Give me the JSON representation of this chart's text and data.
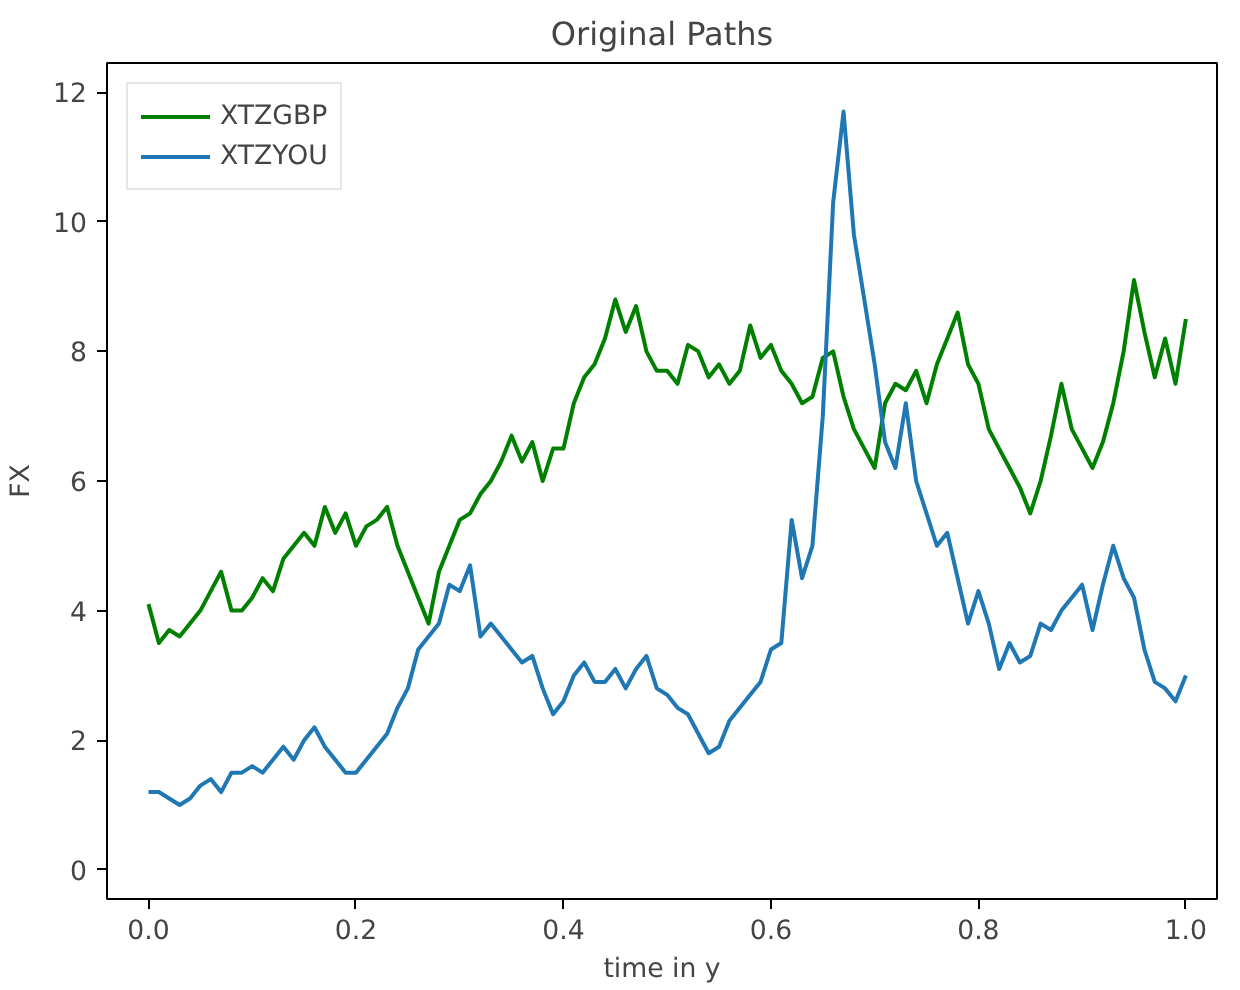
{
  "chart_data": {
    "type": "line",
    "title": "Original Paths",
    "xlabel": "time in y",
    "ylabel": "FX",
    "x": [
      0.0,
      0.01,
      0.02,
      0.03,
      0.04,
      0.05,
      0.06,
      0.07,
      0.08,
      0.09,
      0.1,
      0.11,
      0.12,
      0.13,
      0.14,
      0.15,
      0.16,
      0.17,
      0.18,
      0.19,
      0.2,
      0.21,
      0.22,
      0.23,
      0.24,
      0.25,
      0.26,
      0.27,
      0.28,
      0.29,
      0.3,
      0.31,
      0.32,
      0.33,
      0.34,
      0.35,
      0.36,
      0.37,
      0.38,
      0.39,
      0.4,
      0.41,
      0.42,
      0.43,
      0.44,
      0.45,
      0.46,
      0.47,
      0.48,
      0.49,
      0.5,
      0.51,
      0.52,
      0.53,
      0.54,
      0.55,
      0.56,
      0.57,
      0.58,
      0.59,
      0.6,
      0.61,
      0.62,
      0.63,
      0.64,
      0.65,
      0.66,
      0.67,
      0.68,
      0.69,
      0.7,
      0.71,
      0.72,
      0.73,
      0.74,
      0.75,
      0.76,
      0.77,
      0.78,
      0.79,
      0.8,
      0.81,
      0.82,
      0.83,
      0.84,
      0.85,
      0.86,
      0.87,
      0.88,
      0.89,
      0.9,
      0.91,
      0.92,
      0.93,
      0.94,
      0.95,
      0.96,
      0.97,
      0.98,
      0.99,
      1.0
    ],
    "series": [
      {
        "name": "XTZGBP",
        "color": "#008000",
        "values": [
          4.1,
          3.5,
          3.7,
          3.6,
          3.8,
          4.0,
          4.3,
          4.6,
          4.0,
          4.0,
          4.2,
          4.5,
          4.3,
          4.8,
          5.0,
          5.2,
          5.0,
          5.6,
          5.2,
          5.5,
          5.0,
          5.3,
          5.4,
          5.6,
          5.0,
          4.6,
          4.2,
          3.8,
          4.6,
          5.0,
          5.4,
          5.5,
          5.8,
          6.0,
          6.3,
          6.7,
          6.3,
          6.6,
          6.0,
          6.5,
          6.5,
          7.2,
          7.6,
          7.8,
          8.2,
          8.8,
          8.3,
          8.7,
          8.0,
          7.7,
          7.7,
          7.5,
          8.1,
          8.0,
          7.6,
          7.8,
          7.5,
          7.7,
          8.4,
          7.9,
          8.1,
          7.7,
          7.5,
          7.2,
          7.3,
          7.9,
          8.0,
          7.3,
          6.8,
          6.5,
          6.2,
          7.2,
          7.5,
          7.4,
          7.7,
          7.2,
          7.8,
          8.2,
          8.6,
          7.8,
          7.5,
          6.8,
          6.5,
          6.2,
          5.9,
          5.5,
          6.0,
          6.7,
          7.5,
          6.8,
          6.5,
          6.2,
          6.6,
          7.2,
          8.0,
          9.1,
          8.3,
          7.6,
          8.2,
          7.5,
          8.5
        ]
      },
      {
        "name": "XTZYOU",
        "color": "#1f77b4",
        "values": [
          1.2,
          1.2,
          1.1,
          1.0,
          1.1,
          1.3,
          1.4,
          1.2,
          1.5,
          1.5,
          1.6,
          1.5,
          1.7,
          1.9,
          1.7,
          2.0,
          2.2,
          1.9,
          1.7,
          1.5,
          1.5,
          1.7,
          1.9,
          2.1,
          2.5,
          2.8,
          3.4,
          3.6,
          3.8,
          4.4,
          4.3,
          4.7,
          3.6,
          3.8,
          3.6,
          3.4,
          3.2,
          3.3,
          2.8,
          2.4,
          2.6,
          3.0,
          3.2,
          2.9,
          2.9,
          3.1,
          2.8,
          3.1,
          3.3,
          2.8,
          2.7,
          2.5,
          2.4,
          2.1,
          1.8,
          1.9,
          2.3,
          2.5,
          2.7,
          2.9,
          3.4,
          3.5,
          5.4,
          4.5,
          5.0,
          7.0,
          10.3,
          11.7,
          9.8,
          8.8,
          7.8,
          6.6,
          6.2,
          7.2,
          6.0,
          5.5,
          5.0,
          5.2,
          4.5,
          3.8,
          4.3,
          3.8,
          3.1,
          3.5,
          3.2,
          3.3,
          3.8,
          3.7,
          4.0,
          4.2,
          4.4,
          3.7,
          4.4,
          5.0,
          4.5,
          4.2,
          3.4,
          2.9,
          2.8,
          2.6,
          3.0
        ]
      }
    ],
    "xlim": [
      -0.04,
      1.03
    ],
    "ylim": [
      -0.45,
      12.45
    ],
    "xticks": [
      {
        "value": 0,
        "label": "0.0"
      },
      {
        "value": 0.2,
        "label": "0.2"
      },
      {
        "value": 0.4,
        "label": "0.4"
      },
      {
        "value": 0.6,
        "label": "0.6"
      },
      {
        "value": 0.8,
        "label": "0.8"
      },
      {
        "value": 1,
        "label": "1.0"
      }
    ],
    "yticks": [
      0,
      2,
      4,
      6,
      8,
      10,
      12
    ],
    "legend": "top left",
    "line_style": "solid"
  }
}
